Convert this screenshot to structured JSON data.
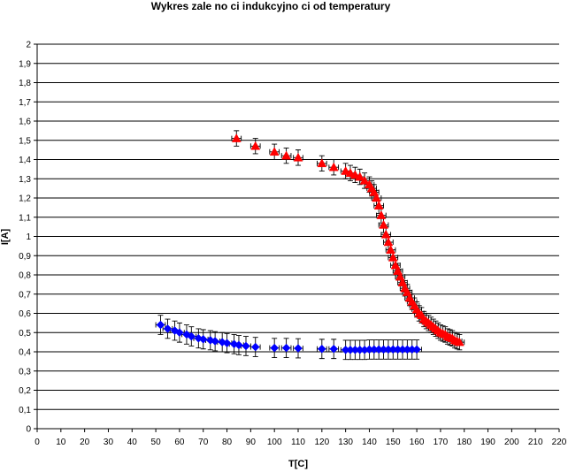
{
  "chart_data": {
    "type": "scatter",
    "title": "Wykres zale no ci indukcyjno ci od temperatury",
    "xlabel": "T[C]",
    "ylabel": "I[A]",
    "xlim": [
      0,
      220
    ],
    "ylim": [
      0,
      2
    ],
    "xticks": [
      "0",
      "10",
      "20",
      "30",
      "40",
      "50",
      "60",
      "70",
      "80",
      "90",
      "100",
      "110",
      "120",
      "130",
      "140",
      "150",
      "160",
      "170",
      "180",
      "190",
      "200",
      "210",
      "220"
    ],
    "yticks": [
      "0",
      "0,1",
      "0,2",
      "0,3",
      "0,4",
      "0,5",
      "0,6",
      "0,7",
      "0,8",
      "0,9",
      "1",
      "1,1",
      "1,2",
      "1,3",
      "1,4",
      "1,5",
      "1,6",
      "1,7",
      "1,8",
      "1,9",
      "2"
    ],
    "grid": "horizontal",
    "error_bars": true,
    "series": [
      {
        "color": "#ff0000",
        "marker": "triangle",
        "x_error": 2,
        "y_error": 0.04,
        "x": [
          84,
          92,
          100,
          105,
          110,
          120,
          125,
          130,
          132,
          134,
          136,
          138,
          140,
          141,
          142,
          143,
          144,
          145,
          146,
          147,
          148,
          149,
          150,
          151,
          152,
          153,
          154,
          155,
          156,
          157,
          158,
          159,
          160,
          161,
          162,
          163,
          164,
          165,
          166,
          167,
          168,
          169,
          170,
          171,
          172,
          173,
          174,
          175,
          176,
          177,
          178
        ],
        "y": [
          1.51,
          1.47,
          1.44,
          1.42,
          1.41,
          1.38,
          1.36,
          1.34,
          1.33,
          1.32,
          1.31,
          1.29,
          1.27,
          1.25,
          1.23,
          1.2,
          1.16,
          1.11,
          1.06,
          1.01,
          0.97,
          0.93,
          0.89,
          0.85,
          0.82,
          0.79,
          0.76,
          0.73,
          0.71,
          0.68,
          0.66,
          0.64,
          0.62,
          0.6,
          0.59,
          0.57,
          0.56,
          0.55,
          0.54,
          0.53,
          0.52,
          0.51,
          0.5,
          0.495,
          0.49,
          0.48,
          0.475,
          0.47,
          0.46,
          0.455,
          0.45
        ]
      },
      {
        "color": "#0000ff",
        "marker": "diamond",
        "x_error": 2,
        "y_error": 0.05,
        "x": [
          52,
          55,
          58,
          60,
          63,
          65,
          68,
          70,
          73,
          75,
          78,
          80,
          83,
          85,
          88,
          92,
          100,
          105,
          110,
          120,
          125,
          130,
          132,
          134,
          136,
          138,
          140,
          142,
          144,
          146,
          148,
          150,
          152,
          154,
          156,
          158,
          160
        ],
        "y": [
          0.54,
          0.52,
          0.51,
          0.5,
          0.49,
          0.48,
          0.47,
          0.465,
          0.46,
          0.455,
          0.45,
          0.445,
          0.44,
          0.435,
          0.43,
          0.425,
          0.42,
          0.42,
          0.418,
          0.415,
          0.415,
          0.41,
          0.41,
          0.41,
          0.41,
          0.41,
          0.412,
          0.412,
          0.412,
          0.412,
          0.412,
          0.412,
          0.412,
          0.412,
          0.412,
          0.412,
          0.412
        ]
      }
    ]
  }
}
